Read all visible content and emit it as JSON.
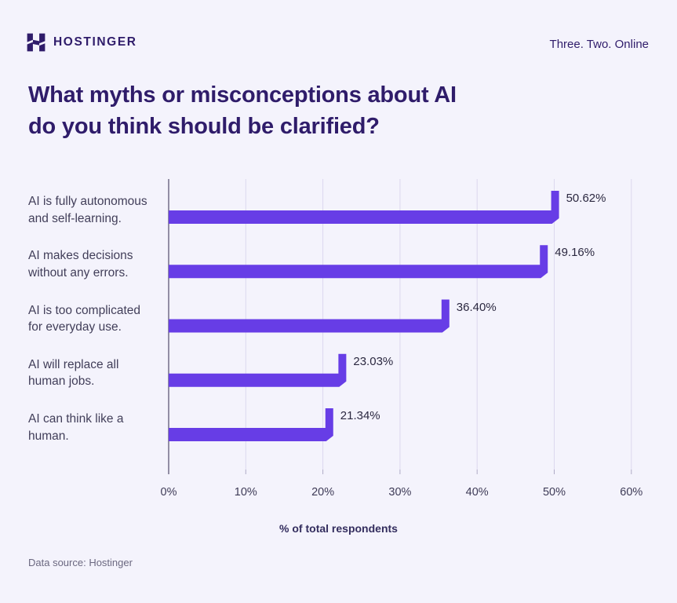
{
  "header": {
    "logo_text": "HOSTINGER",
    "tagline": "Three. Two. Online"
  },
  "title_lines": {
    "line1": "What myths or misconceptions about AI",
    "line2": "do you think should be clarified?"
  },
  "footer": {
    "source": "Data source: Hostinger"
  },
  "colors": {
    "bar": "#673DE6",
    "dark": "#2F1C6A",
    "grid": "#DCD8EE",
    "axis": "#716D88",
    "tick": "#AFABC6"
  },
  "chart_data": {
    "type": "bar",
    "orientation": "horizontal",
    "title": "What myths or misconceptions about AI do you think should be clarified?",
    "categories": [
      "AI is fully autonomous\nand self-learning.",
      "AI makes decisions\nwithout any errors.",
      "AI is too complicated\nfor everyday use.",
      "AI will replace all\nhuman jobs.",
      "AI can think like a\nhuman."
    ],
    "values": [
      50.62,
      49.16,
      36.4,
      23.03,
      21.34
    ],
    "value_labels": [
      "50.62%",
      "49.16%",
      "36.40%",
      "23.03%",
      "21.34%"
    ],
    "xlabel": "% of total respondents",
    "xticks": [
      0,
      10,
      20,
      30,
      40,
      50,
      60
    ],
    "xtick_labels": [
      "0%",
      "10%",
      "20%",
      "30%",
      "40%",
      "50%",
      "60%"
    ],
    "xlim": [
      0,
      60
    ],
    "grid": true,
    "legend": false
  }
}
